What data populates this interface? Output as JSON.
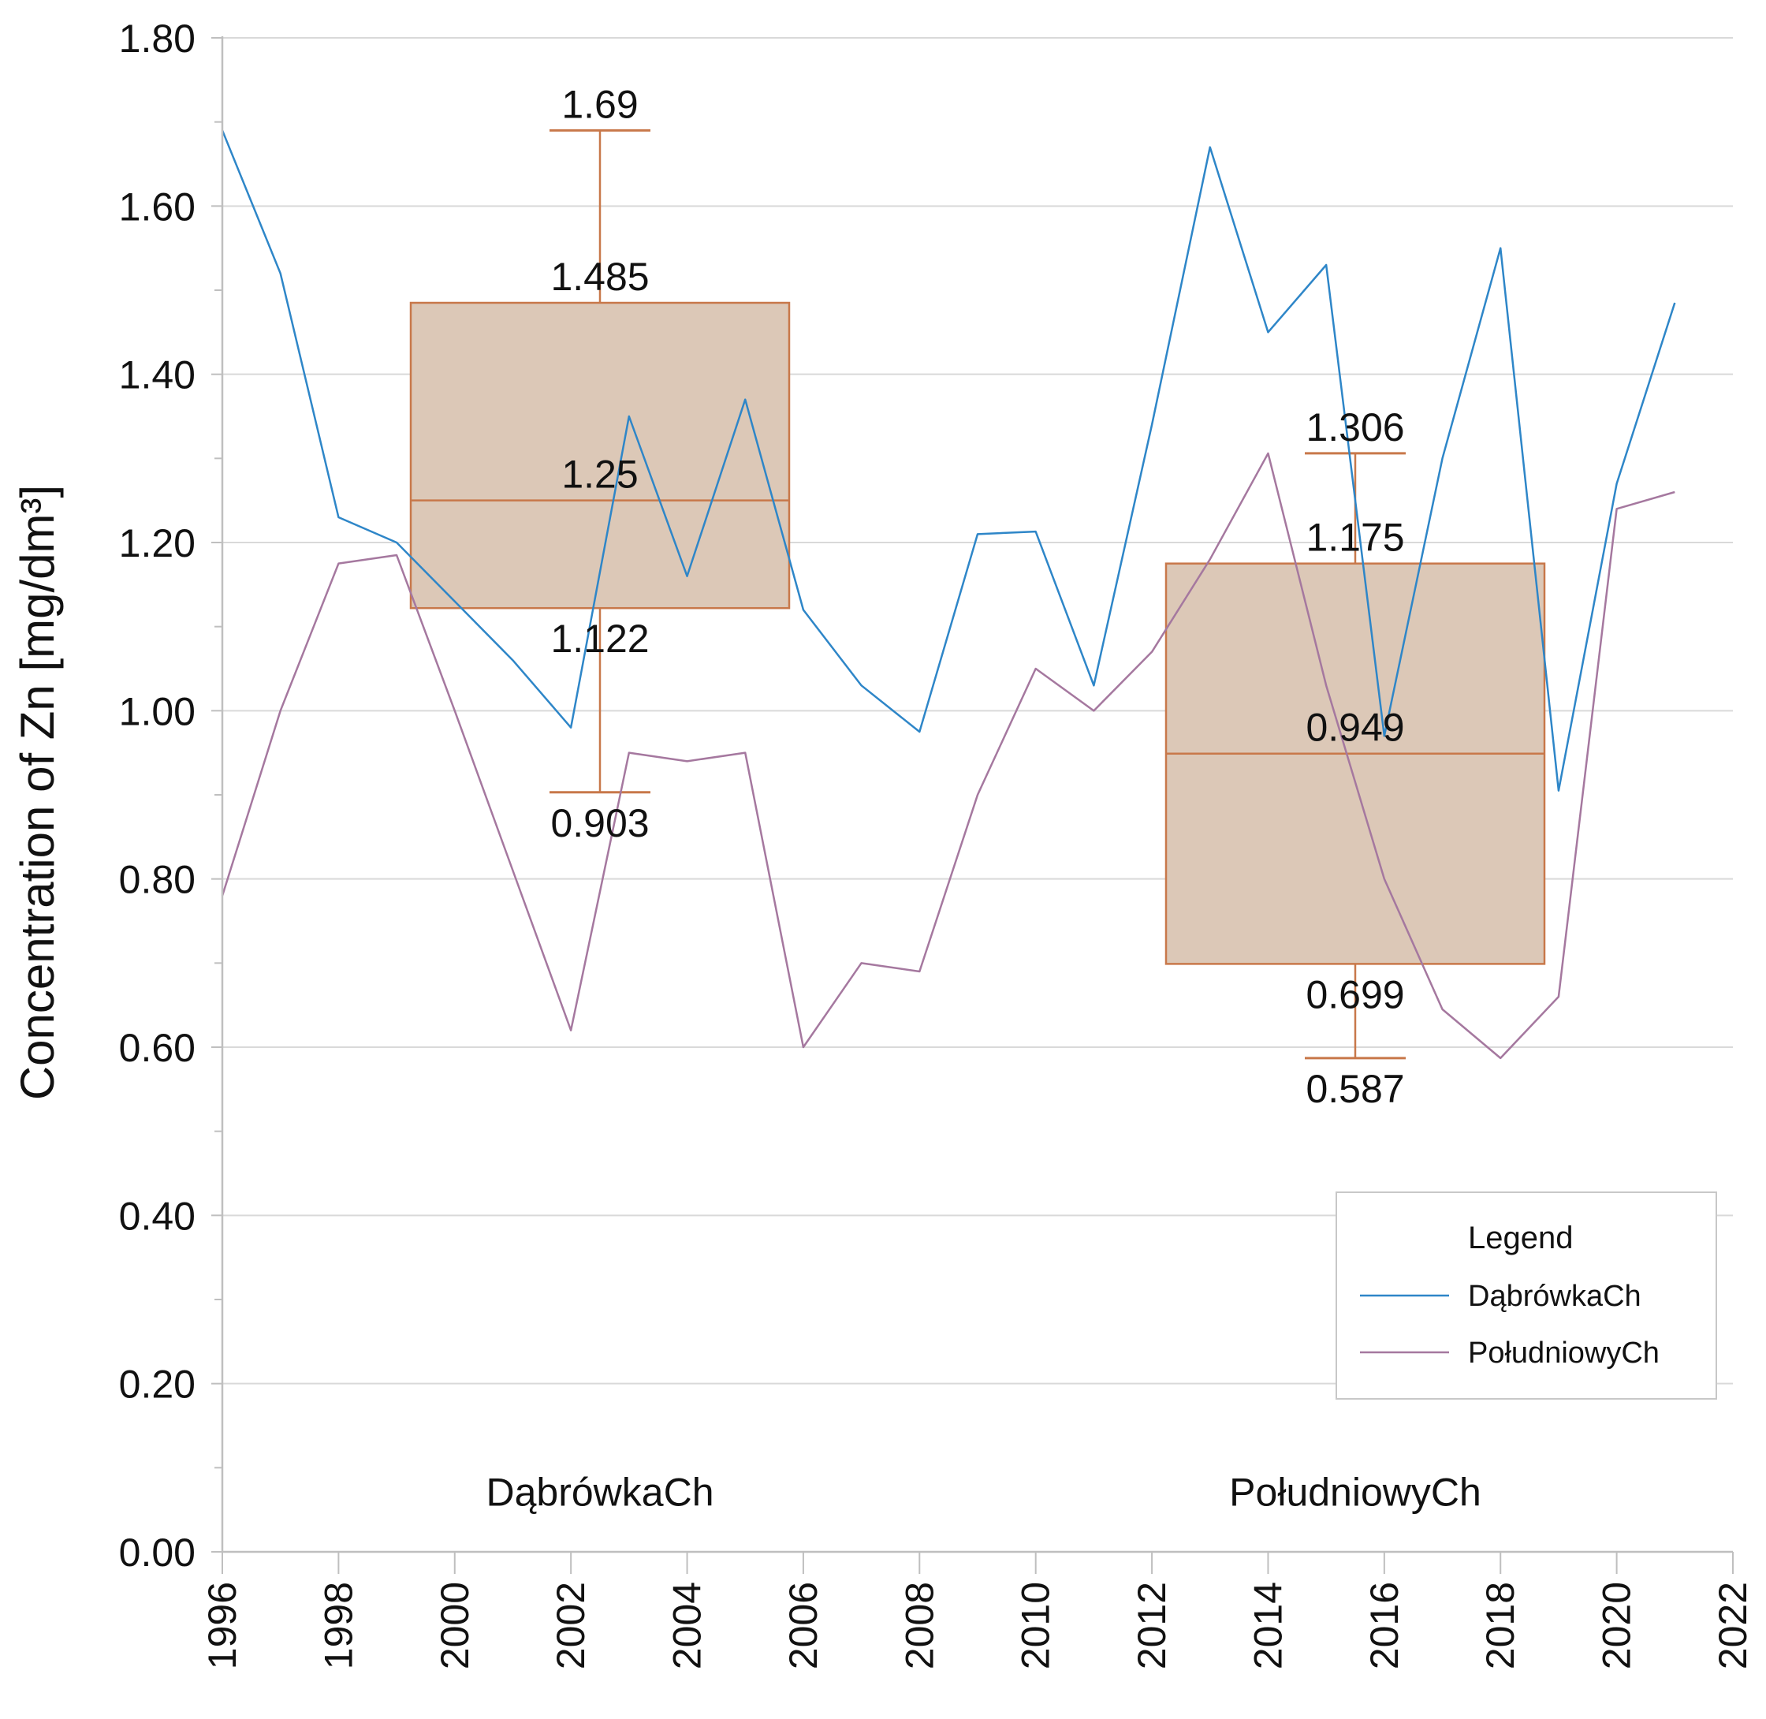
{
  "chart_data": {
    "type": "line",
    "title": "",
    "xlabel": "",
    "ylabel": "Concentration of Zn [mg/dm³]",
    "xlim": [
      1996,
      2022
    ],
    "ylim": [
      0,
      1.8
    ],
    "x_ticks": [
      "1996",
      "1998",
      "2000",
      "2002",
      "2004",
      "2006",
      "2008",
      "2010",
      "2012",
      "2014",
      "2016",
      "2018",
      "2020",
      "2022"
    ],
    "y_ticks": [
      "0.00",
      "0.20",
      "0.40",
      "0.60",
      "0.80",
      "1.00",
      "1.20",
      "1.40",
      "1.60",
      "1.80"
    ],
    "grid": true,
    "series": [
      {
        "name": "DąbrówkaCh",
        "color": "#2E86C8",
        "x": [
          1996,
          1997,
          1998,
          1999,
          2000,
          2001,
          2002,
          2003,
          2004,
          2005,
          2006,
          2007,
          2008,
          2009,
          2010,
          2011,
          2012,
          2013,
          2014,
          2015,
          2016,
          2017,
          2018,
          2019,
          2020,
          2021
        ],
        "values": [
          1.69,
          1.52,
          1.23,
          1.2,
          1.13,
          1.06,
          0.98,
          1.35,
          1.16,
          1.37,
          1.12,
          1.03,
          0.975,
          1.21,
          1.213,
          1.03,
          1.34,
          1.67,
          1.45,
          1.53,
          0.97,
          1.3,
          1.55,
          0.905,
          1.27,
          1.485
        ]
      },
      {
        "name": "PołudniowyCh",
        "color": "#A5789F",
        "x": [
          1996,
          1997,
          1998,
          1999,
          2000,
          2001,
          2002,
          2003,
          2004,
          2005,
          2006,
          2007,
          2008,
          2009,
          2010,
          2011,
          2012,
          2013,
          2014,
          2015,
          2016,
          2017,
          2018,
          2019,
          2020,
          2021
        ],
        "values": [
          0.78,
          1.0,
          1.175,
          1.185,
          1.0,
          0.81,
          0.62,
          0.95,
          0.94,
          0.95,
          0.6,
          0.7,
          0.69,
          0.9,
          1.05,
          1.0,
          1.07,
          1.18,
          1.306,
          1.03,
          0.8,
          0.645,
          0.587,
          0.66,
          1.24,
          1.26
        ]
      }
    ],
    "boxplots": [
      {
        "name": "DąbrówkaCh",
        "group_label": "DąbrówkaCh",
        "center_x": 2002.5,
        "min": 0.903,
        "q1": 1.122,
        "median": 1.25,
        "q3": 1.485,
        "max": 1.69,
        "labels": {
          "min": "0.903",
          "q1": "1.122",
          "median": "1.25",
          "q3": "1.485",
          "max": "1.69"
        }
      },
      {
        "name": "PołudniowyCh",
        "group_label": "PołudniowyCh",
        "center_x": 2015.5,
        "min": 0.587,
        "q1": 0.699,
        "median": 0.949,
        "q3": 1.175,
        "max": 1.306,
        "labels": {
          "min": "0.587",
          "q1": "0.699",
          "median": "0.949",
          "q3": "1.175",
          "max": "1.306"
        }
      }
    ],
    "box_style": {
      "fill": "#DCC8B7",
      "stroke": "#C8784A"
    },
    "legend": {
      "title": "Legend",
      "placement": "bottom-right",
      "entries": [
        "DąbrówkaCh",
        "PołudniowyCh"
      ]
    }
  }
}
